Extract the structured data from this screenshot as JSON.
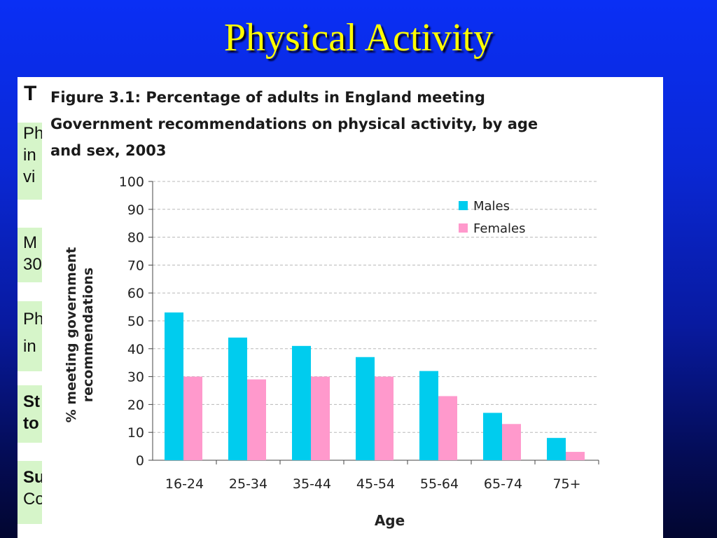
{
  "slide": {
    "title": "Physical Activity",
    "background_fragments": [
      "T",
      "Ph",
      "in",
      "vi",
      "M",
      "30",
      "Ph",
      "in",
      "St",
      "to",
      "Su",
      "Co"
    ]
  },
  "colors": {
    "males": "#00ccee",
    "females": "#ff99cc",
    "title": "#ffff00"
  },
  "chart_data": {
    "type": "bar",
    "title": "Figure 3.1: Percentage of adults in England meeting Government recommendations on physical activity, by age and sex, 2003",
    "title_lines": [
      "Figure 3.1: Percentage of adults in England meeting",
      "Government recommendations on physical activity, by age",
      "and sex, 2003"
    ],
    "xlabel": "Age",
    "ylabel_lines": [
      "% meeting government",
      "recommendations"
    ],
    "ylim": [
      0,
      100
    ],
    "yticks": [
      "0",
      "10",
      "20",
      "30",
      "40",
      "50",
      "60",
      "70",
      "80",
      "90",
      "100"
    ],
    "grid": true,
    "legend_position": "top-right",
    "categories": [
      "16-24",
      "25-34",
      "35-44",
      "45-54",
      "55-64",
      "65-74",
      "75+"
    ],
    "series": [
      {
        "name": "Males",
        "values": [
          53,
          44,
          41,
          37,
          32,
          17,
          8
        ]
      },
      {
        "name": "Females",
        "values": [
          30,
          29,
          30,
          30,
          23,
          13,
          3
        ]
      }
    ]
  }
}
